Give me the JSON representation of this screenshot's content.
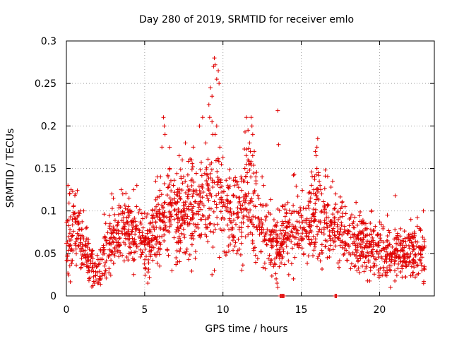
{
  "chart_data": {
    "type": "scatter",
    "title": "Day 280 of 2019, SRMTID for receiver emlo",
    "xlabel": "GPS time / hours",
    "ylabel": "SRMTID / TECUs",
    "xlim": [
      0,
      23.5
    ],
    "ylim": [
      0,
      0.3
    ],
    "x_ticks": [
      0,
      5,
      10,
      15,
      20
    ],
    "x_tick_labels": [
      "0",
      "5",
      "10",
      "15",
      "20"
    ],
    "y_ticks": [
      0,
      0.05,
      0.1,
      0.15,
      0.2,
      0.25,
      0.3
    ],
    "y_tick_labels": [
      "0",
      "0.05",
      "0.1",
      "0.15",
      "0.2",
      "0.25",
      "0.3"
    ],
    "grid": true,
    "marker": "+",
    "series": [
      {
        "name": "SRMTID",
        "color": "#e00000",
        "profile": [
          [
            0.0,
            0.065,
            0.025
          ],
          [
            0.5,
            0.075,
            0.025
          ],
          [
            1.0,
            0.06,
            0.02
          ],
          [
            1.5,
            0.04,
            0.015
          ],
          [
            2.0,
            0.03,
            0.012
          ],
          [
            2.5,
            0.055,
            0.02
          ],
          [
            3.0,
            0.065,
            0.02
          ],
          [
            3.5,
            0.075,
            0.02
          ],
          [
            4.0,
            0.075,
            0.02
          ],
          [
            4.5,
            0.07,
            0.02
          ],
          [
            5.0,
            0.06,
            0.02
          ],
          [
            5.5,
            0.075,
            0.02
          ],
          [
            6.0,
            0.09,
            0.025
          ],
          [
            6.5,
            0.095,
            0.03
          ],
          [
            7.0,
            0.1,
            0.03
          ],
          [
            7.5,
            0.1,
            0.03
          ],
          [
            8.0,
            0.1,
            0.03
          ],
          [
            8.5,
            0.11,
            0.03
          ],
          [
            9.0,
            0.12,
            0.035
          ],
          [
            9.5,
            0.13,
            0.04
          ],
          [
            10.0,
            0.1,
            0.03
          ],
          [
            10.5,
            0.09,
            0.03
          ],
          [
            11.0,
            0.09,
            0.03
          ],
          [
            11.5,
            0.11,
            0.035
          ],
          [
            12.0,
            0.11,
            0.035
          ],
          [
            12.5,
            0.08,
            0.025
          ],
          [
            13.0,
            0.065,
            0.02
          ],
          [
            13.5,
            0.06,
            0.02
          ],
          [
            14.0,
            0.075,
            0.02
          ],
          [
            14.5,
            0.08,
            0.02
          ],
          [
            15.0,
            0.08,
            0.02
          ],
          [
            15.5,
            0.085,
            0.02
          ],
          [
            16.0,
            0.09,
            0.03
          ],
          [
            16.5,
            0.085,
            0.025
          ],
          [
            17.0,
            0.08,
            0.02
          ],
          [
            17.5,
            0.075,
            0.02
          ],
          [
            18.0,
            0.07,
            0.02
          ],
          [
            18.5,
            0.065,
            0.02
          ],
          [
            19.0,
            0.06,
            0.02
          ],
          [
            19.5,
            0.055,
            0.02
          ],
          [
            20.0,
            0.055,
            0.02
          ],
          [
            20.5,
            0.05,
            0.018
          ],
          [
            21.0,
            0.05,
            0.018
          ],
          [
            21.5,
            0.05,
            0.018
          ],
          [
            22.0,
            0.055,
            0.02
          ],
          [
            22.5,
            0.05,
            0.02
          ],
          [
            22.9,
            0.05,
            0.02
          ]
        ],
        "outliers": [
          [
            9.2,
            0.245
          ],
          [
            9.3,
            0.235
          ],
          [
            9.4,
            0.27
          ],
          [
            9.45,
            0.28
          ],
          [
            9.5,
            0.272
          ],
          [
            9.6,
            0.255
          ],
          [
            9.7,
            0.265
          ],
          [
            9.75,
            0.25
          ],
          [
            9.6,
            0.2
          ],
          [
            9.5,
            0.19
          ],
          [
            9.7,
            0.16
          ],
          [
            9.8,
            0.175
          ],
          [
            9.3,
            0.205
          ],
          [
            9.35,
            0.19
          ],
          [
            9.1,
            0.225
          ],
          [
            9.15,
            0.21
          ],
          [
            8.5,
            0.2
          ],
          [
            8.7,
            0.21
          ],
          [
            8.9,
            0.18
          ],
          [
            6.2,
            0.21
          ],
          [
            6.25,
            0.2
          ],
          [
            6.3,
            0.19
          ],
          [
            6.1,
            0.175
          ],
          [
            11.5,
            0.21
          ],
          [
            11.6,
            0.195
          ],
          [
            11.8,
            0.21
          ],
          [
            11.85,
            0.2
          ],
          [
            11.9,
            0.19
          ],
          [
            11.7,
            0.18
          ],
          [
            11.6,
            0.16
          ],
          [
            11.75,
            0.17
          ],
          [
            11.5,
            0.155
          ],
          [
            11.55,
            0.145
          ],
          [
            11.4,
            0.15
          ],
          [
            11.45,
            0.14
          ],
          [
            11.3,
            0.135
          ],
          [
            11.2,
            0.135
          ],
          [
            11.65,
            0.155
          ],
          [
            11.7,
            0.148
          ],
          [
            11.8,
            0.158
          ],
          [
            11.9,
            0.165
          ],
          [
            10.0,
            0.163
          ],
          [
            9.9,
            0.155
          ],
          [
            12.0,
            0.17
          ],
          [
            12.1,
            0.14
          ],
          [
            13.5,
            0.218
          ],
          [
            13.55,
            0.178
          ],
          [
            16.0,
            0.175
          ],
          [
            15.9,
            0.17
          ],
          [
            16.05,
            0.185
          ],
          [
            15.95,
            0.165
          ],
          [
            16.0,
            0.15
          ],
          [
            16.1,
            0.145
          ],
          [
            15.85,
            0.14
          ],
          [
            16.15,
            0.135
          ],
          [
            15.8,
            0.125
          ],
          [
            16.2,
            0.13
          ],
          [
            15.9,
            0.12
          ],
          [
            16.05,
            0.115
          ],
          [
            16.3,
            0.12
          ],
          [
            14.5,
            0.142
          ],
          [
            14.55,
            0.143
          ],
          [
            17.0,
            0.135
          ],
          [
            16.9,
            0.128
          ],
          [
            17.2,
            0.12
          ],
          [
            21.0,
            0.118
          ],
          [
            0.1,
            0.13
          ],
          [
            0.2,
            0.12
          ],
          [
            0.3,
            0.125
          ],
          [
            0.4,
            0.123
          ],
          [
            0.6,
            0.12
          ],
          [
            0.7,
            0.124
          ],
          [
            0.9,
            0.1
          ],
          [
            1.1,
            0.1
          ],
          [
            1.7,
            0.012
          ],
          [
            1.8,
            0.015
          ],
          [
            2.0,
            0.015
          ],
          [
            2.2,
            0.02
          ],
          [
            13.5,
            0.01
          ],
          [
            13.4,
            0.02
          ],
          [
            13.45,
            0.015
          ],
          [
            5.2,
            0.015
          ],
          [
            22.8,
            0.1
          ],
          [
            22.7,
            0.03
          ],
          [
            14.2,
            0.025
          ],
          [
            14.5,
            0.02
          ],
          [
            7.0,
            0.037
          ],
          [
            7.1,
            0.04
          ],
          [
            7.2,
            0.165
          ],
          [
            7.4,
            0.16
          ],
          [
            7.6,
            0.18
          ],
          [
            8.1,
            0.175
          ],
          [
            8.0,
            0.16
          ],
          [
            3.5,
            0.125
          ],
          [
            3.6,
            0.12
          ],
          [
            3.0,
            0.115
          ],
          [
            4.3,
            0.125
          ],
          [
            4.5,
            0.13
          ],
          [
            2.9,
            0.12
          ],
          [
            6.5,
            0.14
          ],
          [
            6.6,
            0.15
          ],
          [
            5.8,
            0.14
          ],
          [
            5.7,
            0.135
          ],
          [
            12.5,
            0.14
          ],
          [
            12.6,
            0.13
          ],
          [
            19.5,
            0.1
          ],
          [
            20.5,
            0.095
          ],
          [
            22.0,
            0.09
          ],
          [
            18.5,
            0.11
          ],
          [
            17.6,
            0.11
          ],
          [
            17.8,
            0.105
          ],
          [
            9.3,
            0.025
          ],
          [
            9.45,
            0.03
          ]
        ],
        "zero_points": [
          [
            13.65,
            0.0
          ],
          [
            13.7,
            0.0
          ],
          [
            13.75,
            0.0
          ],
          [
            13.8,
            0.0
          ],
          [
            13.85,
            0.0
          ],
          [
            13.9,
            0.0
          ],
          [
            17.15,
            0.0
          ],
          [
            17.2,
            0.0
          ],
          [
            17.25,
            0.0
          ]
        ]
      }
    ]
  }
}
